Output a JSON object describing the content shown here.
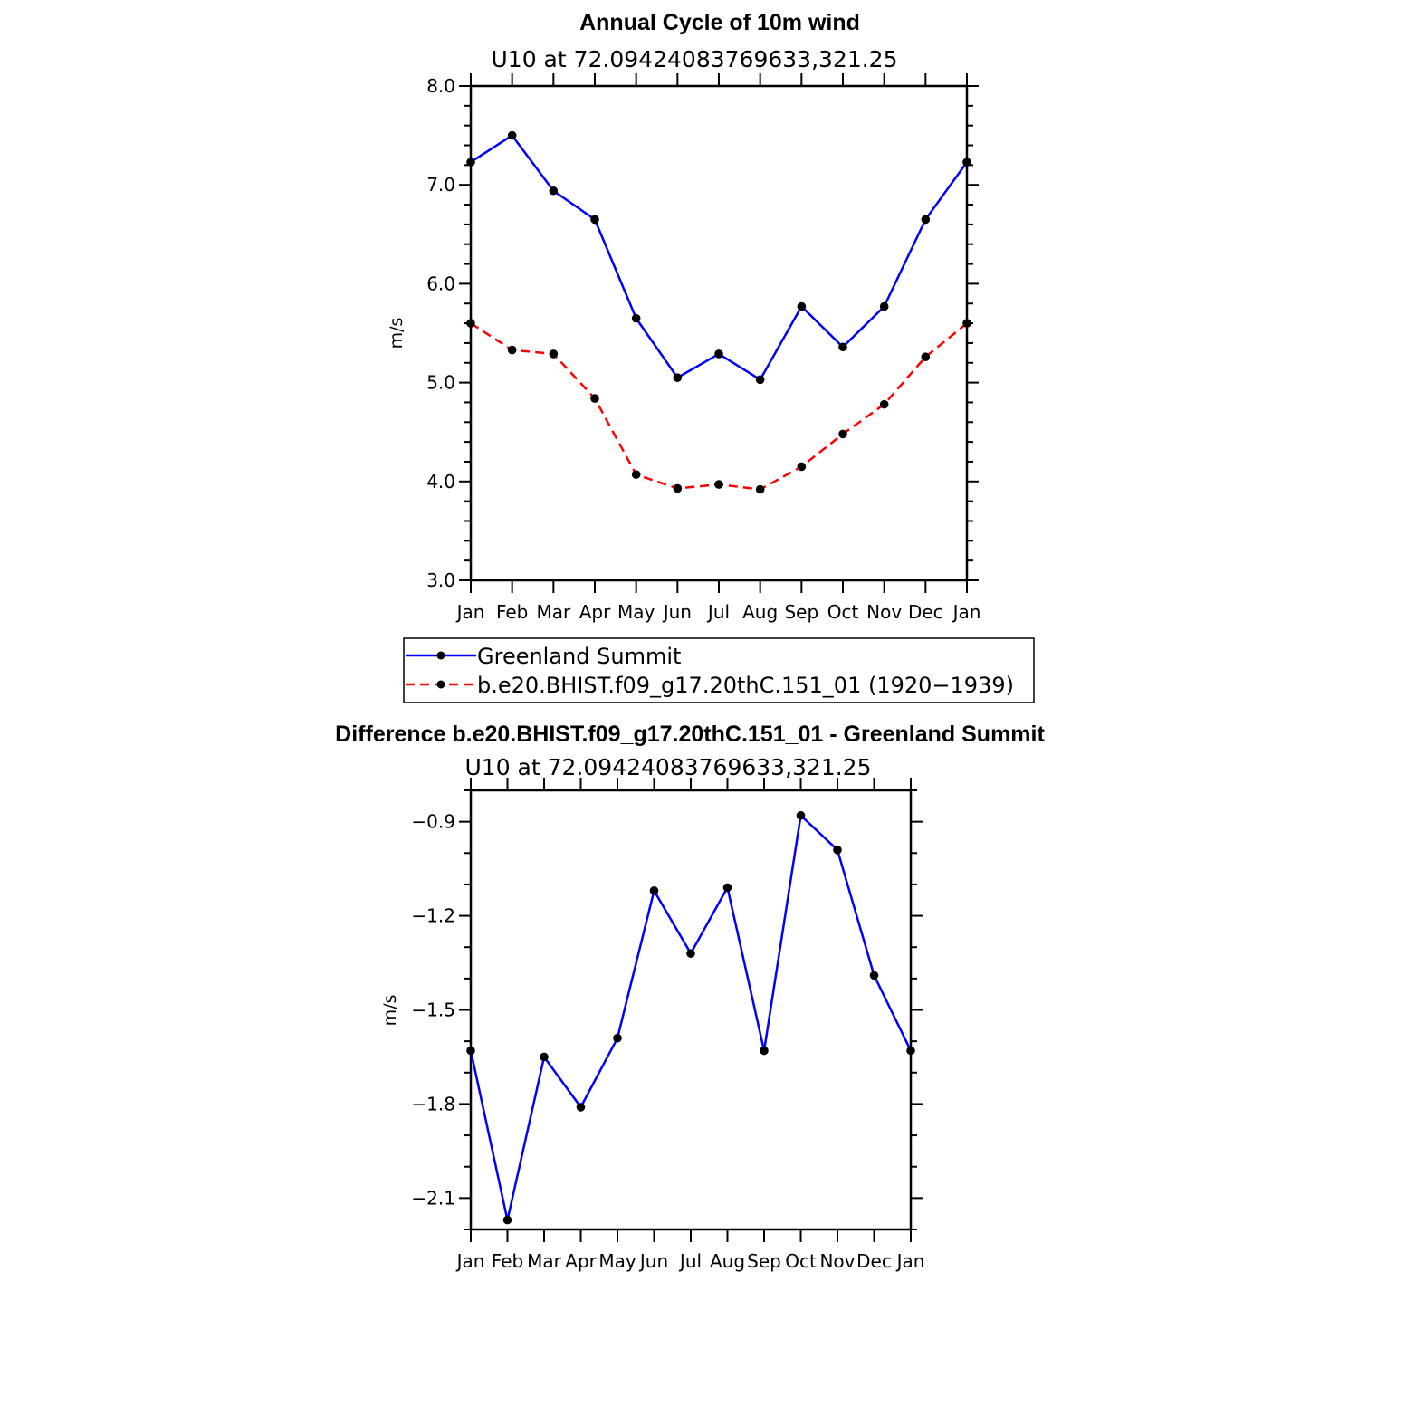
{
  "chart_data": [
    {
      "type": "line",
      "title": "Annual Cycle of 10m wind",
      "subtitle": "U10  at  72.09424083769633,321.25",
      "ylabel": "m/s",
      "ylim": [
        3.0,
        8.0
      ],
      "yticks": [
        "3.0",
        "4.0",
        "5.0",
        "6.0",
        "7.0",
        "8.0"
      ],
      "categories": [
        "Jan",
        "Feb",
        "Mar",
        "Apr",
        "May",
        "Jun",
        "Jul",
        "Aug",
        "Sep",
        "Oct",
        "Nov",
        "Dec",
        "Jan"
      ],
      "series": [
        {
          "name": "Greenland Summit",
          "color": "#0000ff",
          "dash": "solid",
          "values": [
            7.23,
            7.5,
            6.94,
            6.65,
            5.65,
            5.05,
            5.29,
            5.03,
            5.77,
            5.36,
            5.77,
            6.65,
            7.23
          ]
        },
        {
          "name": "b.e20.BHIST.f09_g17.20thC.151_01 (1920−1939)",
          "color": "#ff0000",
          "dash": "dashed",
          "values": [
            5.6,
            5.33,
            5.29,
            4.84,
            4.07,
            3.93,
            3.97,
            3.92,
            4.15,
            4.48,
            4.78,
            5.26,
            5.6
          ]
        }
      ],
      "legend_position": "below"
    },
    {
      "type": "line",
      "title": "Difference b.e20.BHIST.f09_g17.20thC.151_01 - Greenland Summit",
      "subtitle": "U10  at  72.09424083769633,321.25",
      "ylabel": "m/s",
      "ylim": [
        -2.2,
        -0.8
      ],
      "yticks": [
        "−2.1",
        "−1.8",
        "−1.5",
        "−1.2",
        "−0.9"
      ],
      "ytick_values": [
        -2.1,
        -1.8,
        -1.5,
        -1.2,
        -0.9
      ],
      "categories": [
        "Jan",
        "Feb",
        "Mar",
        "Apr",
        "May",
        "Jun",
        "Jul",
        "Aug",
        "Sep",
        "Oct",
        "Nov",
        "Dec",
        "Jan"
      ],
      "series": [
        {
          "color": "#0000ff",
          "dash": "solid",
          "values": [
            -1.63,
            -2.17,
            -1.65,
            -1.81,
            -1.59,
            -1.12,
            -1.32,
            -1.11,
            -1.63,
            -0.88,
            -0.99,
            -1.39,
            -1.63
          ]
        }
      ]
    }
  ]
}
